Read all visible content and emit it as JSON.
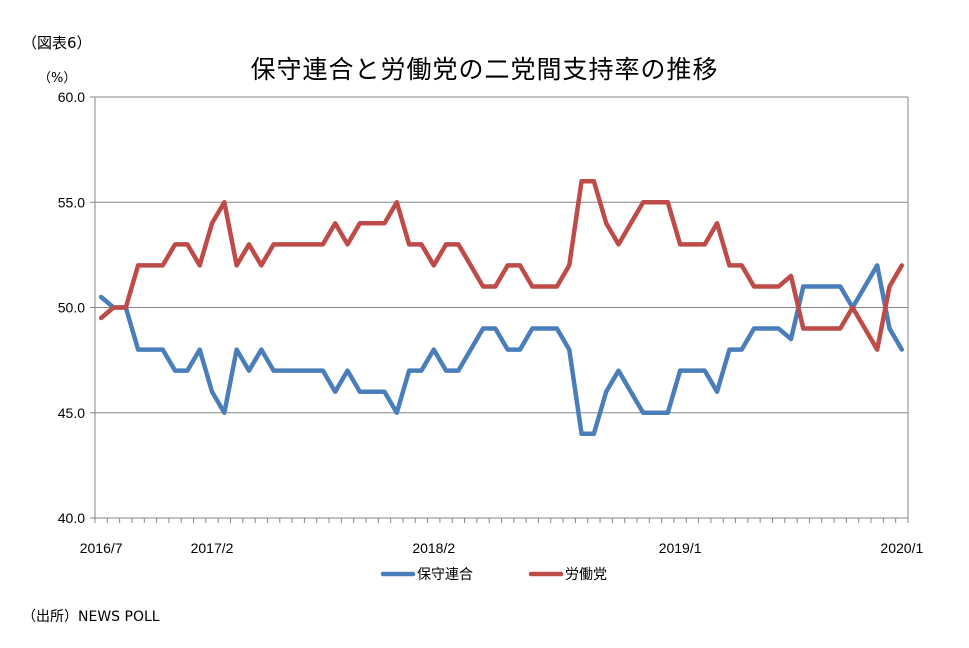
{
  "figure_label": "（図表6）",
  "source_note": "（出所）NEWS POLL",
  "chart_data": {
    "type": "line",
    "title": "保守連合と労働党の二党間支持率の推移",
    "ylabel": "（%）",
    "xlabel": "",
    "ylim": [
      40,
      60
    ],
    "yticks": [
      "40.0",
      "45.0",
      "50.0",
      "55.0",
      "60.0"
    ],
    "ytick_values": [
      40,
      45,
      50,
      55,
      60
    ],
    "xtick_labels": [
      {
        "index": 0,
        "label": "2016/7"
      },
      {
        "index": 9,
        "label": "2017/2"
      },
      {
        "index": 27,
        "label": "2018/2"
      },
      {
        "index": 47,
        "label": "2019/1"
      },
      {
        "index": 65,
        "label": "2020/1"
      }
    ],
    "grid": true,
    "legend_position": "bottom",
    "series": [
      {
        "name": "保守連合",
        "color": "#4a7ebb",
        "values": [
          50.5,
          50,
          50,
          48,
          48,
          48,
          47,
          47,
          48,
          46,
          45,
          48,
          47,
          48,
          47,
          47,
          47,
          47,
          47,
          46,
          47,
          46,
          46,
          46,
          45,
          47,
          47,
          48,
          47,
          47,
          48,
          49,
          49,
          48,
          48,
          49,
          49,
          49,
          48,
          44,
          44,
          46,
          47,
          46,
          45,
          45,
          45,
          47,
          47,
          47,
          46,
          48,
          48,
          49,
          49,
          49,
          48.5,
          51,
          51,
          51,
          51,
          50,
          51,
          52,
          49,
          48
        ]
      },
      {
        "name": "労働党",
        "color": "#be4b48",
        "values": [
          49.5,
          50,
          50,
          52,
          52,
          52,
          53,
          53,
          52,
          54,
          55,
          52,
          53,
          52,
          53,
          53,
          53,
          53,
          53,
          54,
          53,
          54,
          54,
          54,
          55,
          53,
          53,
          52,
          53,
          53,
          52,
          51,
          51,
          52,
          52,
          51,
          51,
          51,
          52,
          56,
          56,
          54,
          53,
          54,
          55,
          55,
          55,
          53,
          53,
          53,
          54,
          52,
          52,
          51,
          51,
          51,
          51.5,
          49,
          49,
          49,
          49,
          50,
          49,
          48,
          51,
          52
        ]
      }
    ]
  }
}
